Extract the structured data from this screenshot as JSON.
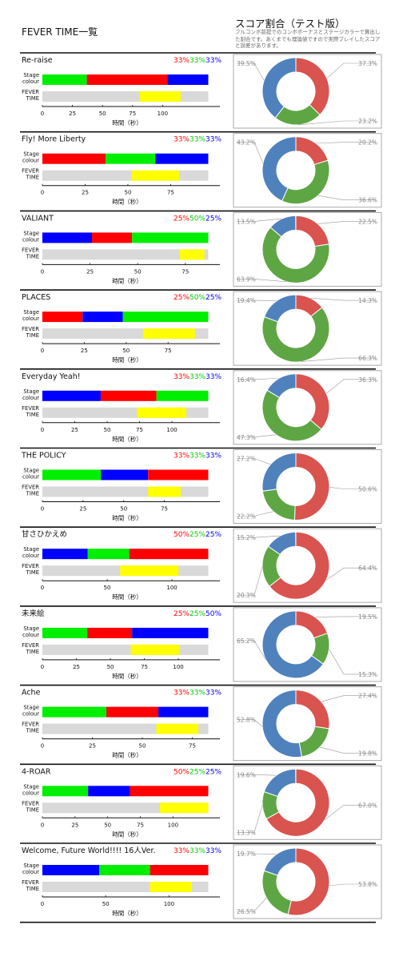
{
  "header": {
    "title": "FEVER TIME一覧",
    "score_title": "スコア割合（テスト版）",
    "score_note": "フルコンボ前提でのコンボボーナスとステージカラーで算出した割合です。あくまでも理論値ですので実際プレイしたスコアと誤差があります。"
  },
  "labels": {
    "stage": [
      "Stage",
      "colour"
    ],
    "fever": [
      "FEVER",
      "TIME"
    ],
    "xlabel": "時間（秒）"
  },
  "colors": {
    "red": "#ff0000",
    "green": "#00ee00",
    "blue": "#0000ff",
    "fever": "#ffff00",
    "track": "#d9d9d9",
    "pie_red": "#d9534f",
    "pie_green": "#5ea644",
    "pie_blue": "#4f81bd"
  },
  "chart_data": [
    {
      "type": "bar",
      "title": "Re-raise",
      "pct": [
        "33%",
        "33%",
        "33%"
      ],
      "stage": [
        [
          "green",
          0,
          37
        ],
        [
          "red",
          37,
          104
        ],
        [
          "blue",
          104,
          138
        ]
      ],
      "fever": [
        81,
        115
      ],
      "total": 138,
      "ticks": [
        0,
        25,
        50,
        75,
        100
      ],
      "xlabel": "時間（秒）",
      "donut": {
        "red": 37.3,
        "green": 23.2,
        "blue": 39.5
      }
    },
    {
      "type": "bar",
      "title": "Fly! More Liberty",
      "pct": [
        "33%",
        "33%",
        "33%"
      ],
      "stage": [
        [
          "red",
          0,
          37
        ],
        [
          "green",
          37,
          66
        ],
        [
          "blue",
          66,
          97
        ]
      ],
      "fever": [
        52,
        80
      ],
      "total": 97,
      "ticks": [
        0,
        25,
        50,
        75
      ],
      "xlabel": "時間（秒）",
      "donut": {
        "red": 20.2,
        "green": 36.6,
        "blue": 43.2
      }
    },
    {
      "type": "bar",
      "title": "VALIANT",
      "pct": [
        "25%",
        "50%",
        "25%"
      ],
      "stage": [
        [
          "blue",
          0,
          26
        ],
        [
          "red",
          26,
          47
        ],
        [
          "green",
          47,
          87
        ]
      ],
      "fever": [
        72,
        85
      ],
      "total": 87,
      "ticks": [
        0,
        25,
        50,
        75
      ],
      "xlabel": "時間（秒）",
      "donut": {
        "red": 22.5,
        "green": 63.9,
        "blue": 13.5
      }
    },
    {
      "type": "bar",
      "title": "PLACES",
      "pct": [
        "25%",
        "50%",
        "25%"
      ],
      "stage": [
        [
          "red",
          0,
          24
        ],
        [
          "blue",
          24,
          48
        ],
        [
          "green",
          48,
          99
        ]
      ],
      "fever": [
        60,
        91
      ],
      "total": 99,
      "ticks": [
        0,
        25,
        50,
        75
      ],
      "xlabel": "時間（秒）",
      "donut": {
        "red": 14.3,
        "green": 66.3,
        "blue": 19.4
      }
    },
    {
      "type": "bar",
      "title": "Everyday Yeah!",
      "pct": [
        "33%",
        "33%",
        "33%"
      ],
      "stage": [
        [
          "blue",
          0,
          45
        ],
        [
          "red",
          45,
          88
        ],
        [
          "green",
          88,
          128
        ]
      ],
      "fever": [
        73,
        111
      ],
      "total": 128,
      "ticks": [
        0,
        25,
        50,
        75,
        100
      ],
      "xlabel": "時間（秒）",
      "donut": {
        "red": 36.3,
        "green": 47.3,
        "blue": 16.4
      }
    },
    {
      "type": "bar",
      "title": "THE POLICY",
      "pct": [
        "33%",
        "33%",
        "33%"
      ],
      "stage": [
        [
          "green",
          0,
          36
        ],
        [
          "blue",
          36,
          65
        ],
        [
          "red",
          65,
          102
        ]
      ],
      "fever": [
        65,
        85
      ],
      "total": 102,
      "ticks": [
        0,
        25,
        50,
        75
      ],
      "xlabel": "時間（秒）",
      "donut": {
        "red": 50.6,
        "green": 22.2,
        "blue": 27.2
      }
    },
    {
      "type": "bar",
      "title": "甘さひかえめ",
      "pct": [
        "50%",
        "25%",
        "25%"
      ],
      "stage": [
        [
          "blue",
          0,
          35
        ],
        [
          "green",
          35,
          67
        ],
        [
          "red",
          67,
          128
        ]
      ],
      "fever": [
        60,
        105
      ],
      "total": 128,
      "ticks": [
        0,
        50,
        100
      ],
      "xlabel": "時間（秒）",
      "donut": {
        "red": 64.4,
        "green": 20.3,
        "blue": 15.2
      }
    },
    {
      "type": "bar",
      "title": "未来絵",
      "pct": [
        "25%",
        "25%",
        "50%"
      ],
      "stage": [
        [
          "green",
          0,
          33
        ],
        [
          "red",
          33,
          66
        ],
        [
          "blue",
          66,
          122
        ]
      ],
      "fever": [
        65,
        101
      ],
      "total": 122,
      "ticks": [
        0,
        25,
        50,
        75,
        100
      ],
      "xlabel": "時間（秒）",
      "donut": {
        "red": 19.5,
        "green": 15.3,
        "blue": 65.2
      }
    },
    {
      "type": "bar",
      "title": "Ache",
      "pct": [
        "33%",
        "33%",
        "33%"
      ],
      "stage": [
        [
          "green",
          0,
          32
        ],
        [
          "red",
          32,
          58
        ],
        [
          "blue",
          58,
          83
        ]
      ],
      "fever": [
        57,
        78
      ],
      "total": 83,
      "ticks": [
        0,
        25,
        50,
        75
      ],
      "xlabel": "時間（秒）",
      "donut": {
        "red": 27.4,
        "green": 19.8,
        "blue": 52.8
      }
    },
    {
      "type": "bar",
      "title": "4-ROAR",
      "pct": [
        "50%",
        "25%",
        "25%"
      ],
      "stage": [
        [
          "green",
          0,
          35
        ],
        [
          "blue",
          35,
          67
        ],
        [
          "red",
          67,
          127
        ]
      ],
      "fever": [
        90,
        127
      ],
      "total": 127,
      "ticks": [
        0,
        25,
        50,
        75,
        100
      ],
      "xlabel": "時間（秒）",
      "donut": {
        "red": 67.0,
        "green": 13.3,
        "blue": 19.6
      }
    },
    {
      "type": "bar",
      "title": "Welcome, Future World!!!! 16人Ver.",
      "pct": [
        "33%",
        "33%",
        "33%"
      ],
      "stage": [
        [
          "blue",
          0,
          45
        ],
        [
          "green",
          45,
          85
        ],
        [
          "red",
          85,
          131
        ]
      ],
      "fever": [
        85,
        118
      ],
      "total": 131,
      "ticks": [
        0,
        50,
        100
      ],
      "xlabel": "時間（秒）",
      "donut": {
        "red": 53.8,
        "green": 26.5,
        "blue": 19.7
      }
    }
  ]
}
